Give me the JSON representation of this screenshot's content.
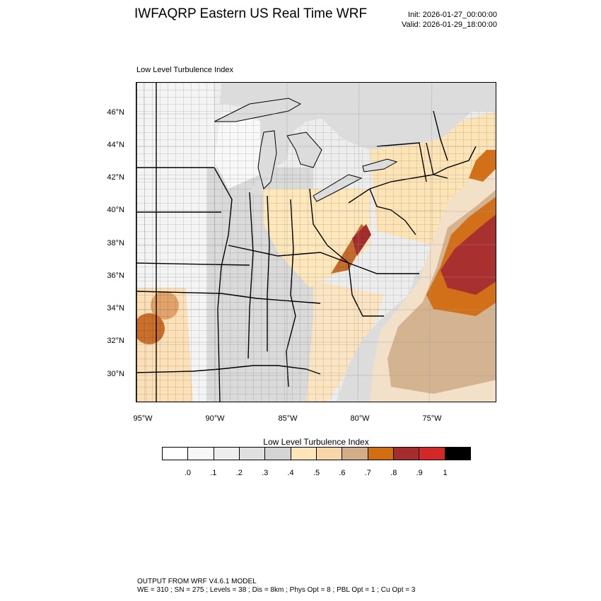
{
  "header": {
    "title": "IWFAQRP Eastern US Real Time WRF",
    "init": "Init: 2026-01-27_00:00:00",
    "valid": "Valid: 2026-01-29_18:00:00"
  },
  "plot": {
    "label": "Low Level Turbulence Index"
  },
  "map": {
    "lat_labels": [
      "46°N",
      "44°N",
      "42°N",
      "40°N",
      "38°N",
      "36°N",
      "34°N",
      "32°N",
      "30°N"
    ],
    "lon_labels": [
      "95°W",
      "90°W",
      "85°W",
      "80°W",
      "75°W"
    ],
    "colors": {
      "water": "#dedede",
      "land_low": "#f3f3f3",
      "land_mid": "#dcdcdc",
      "state_border": "#000000"
    }
  },
  "colorbar": {
    "title": "Low Level Turbulence Index",
    "colors": [
      "#ffffff",
      "#f7f7f7",
      "#eeeeee",
      "#e0e0e0",
      "#d4d4d4",
      "#ffe6b8",
      "#f8d6a8",
      "#d2ae88",
      "#d26e10",
      "#a52d2d",
      "#d22828",
      "#000000"
    ],
    "tick_labels": [
      ".0",
      ".1",
      ".2",
      ".3",
      ".4",
      ".5",
      ".6",
      ".7",
      ".8",
      ".9",
      "1"
    ]
  },
  "footer": {
    "line1": "OUTPUT FROM WRF V4.6.1 MODEL",
    "line2": "WE = 310 ; SN = 275 ; Levels = 38 ; Dis = 8km ; Phys Opt = 8 ; PBL Opt = 1 ; Cu Opt = 3"
  }
}
